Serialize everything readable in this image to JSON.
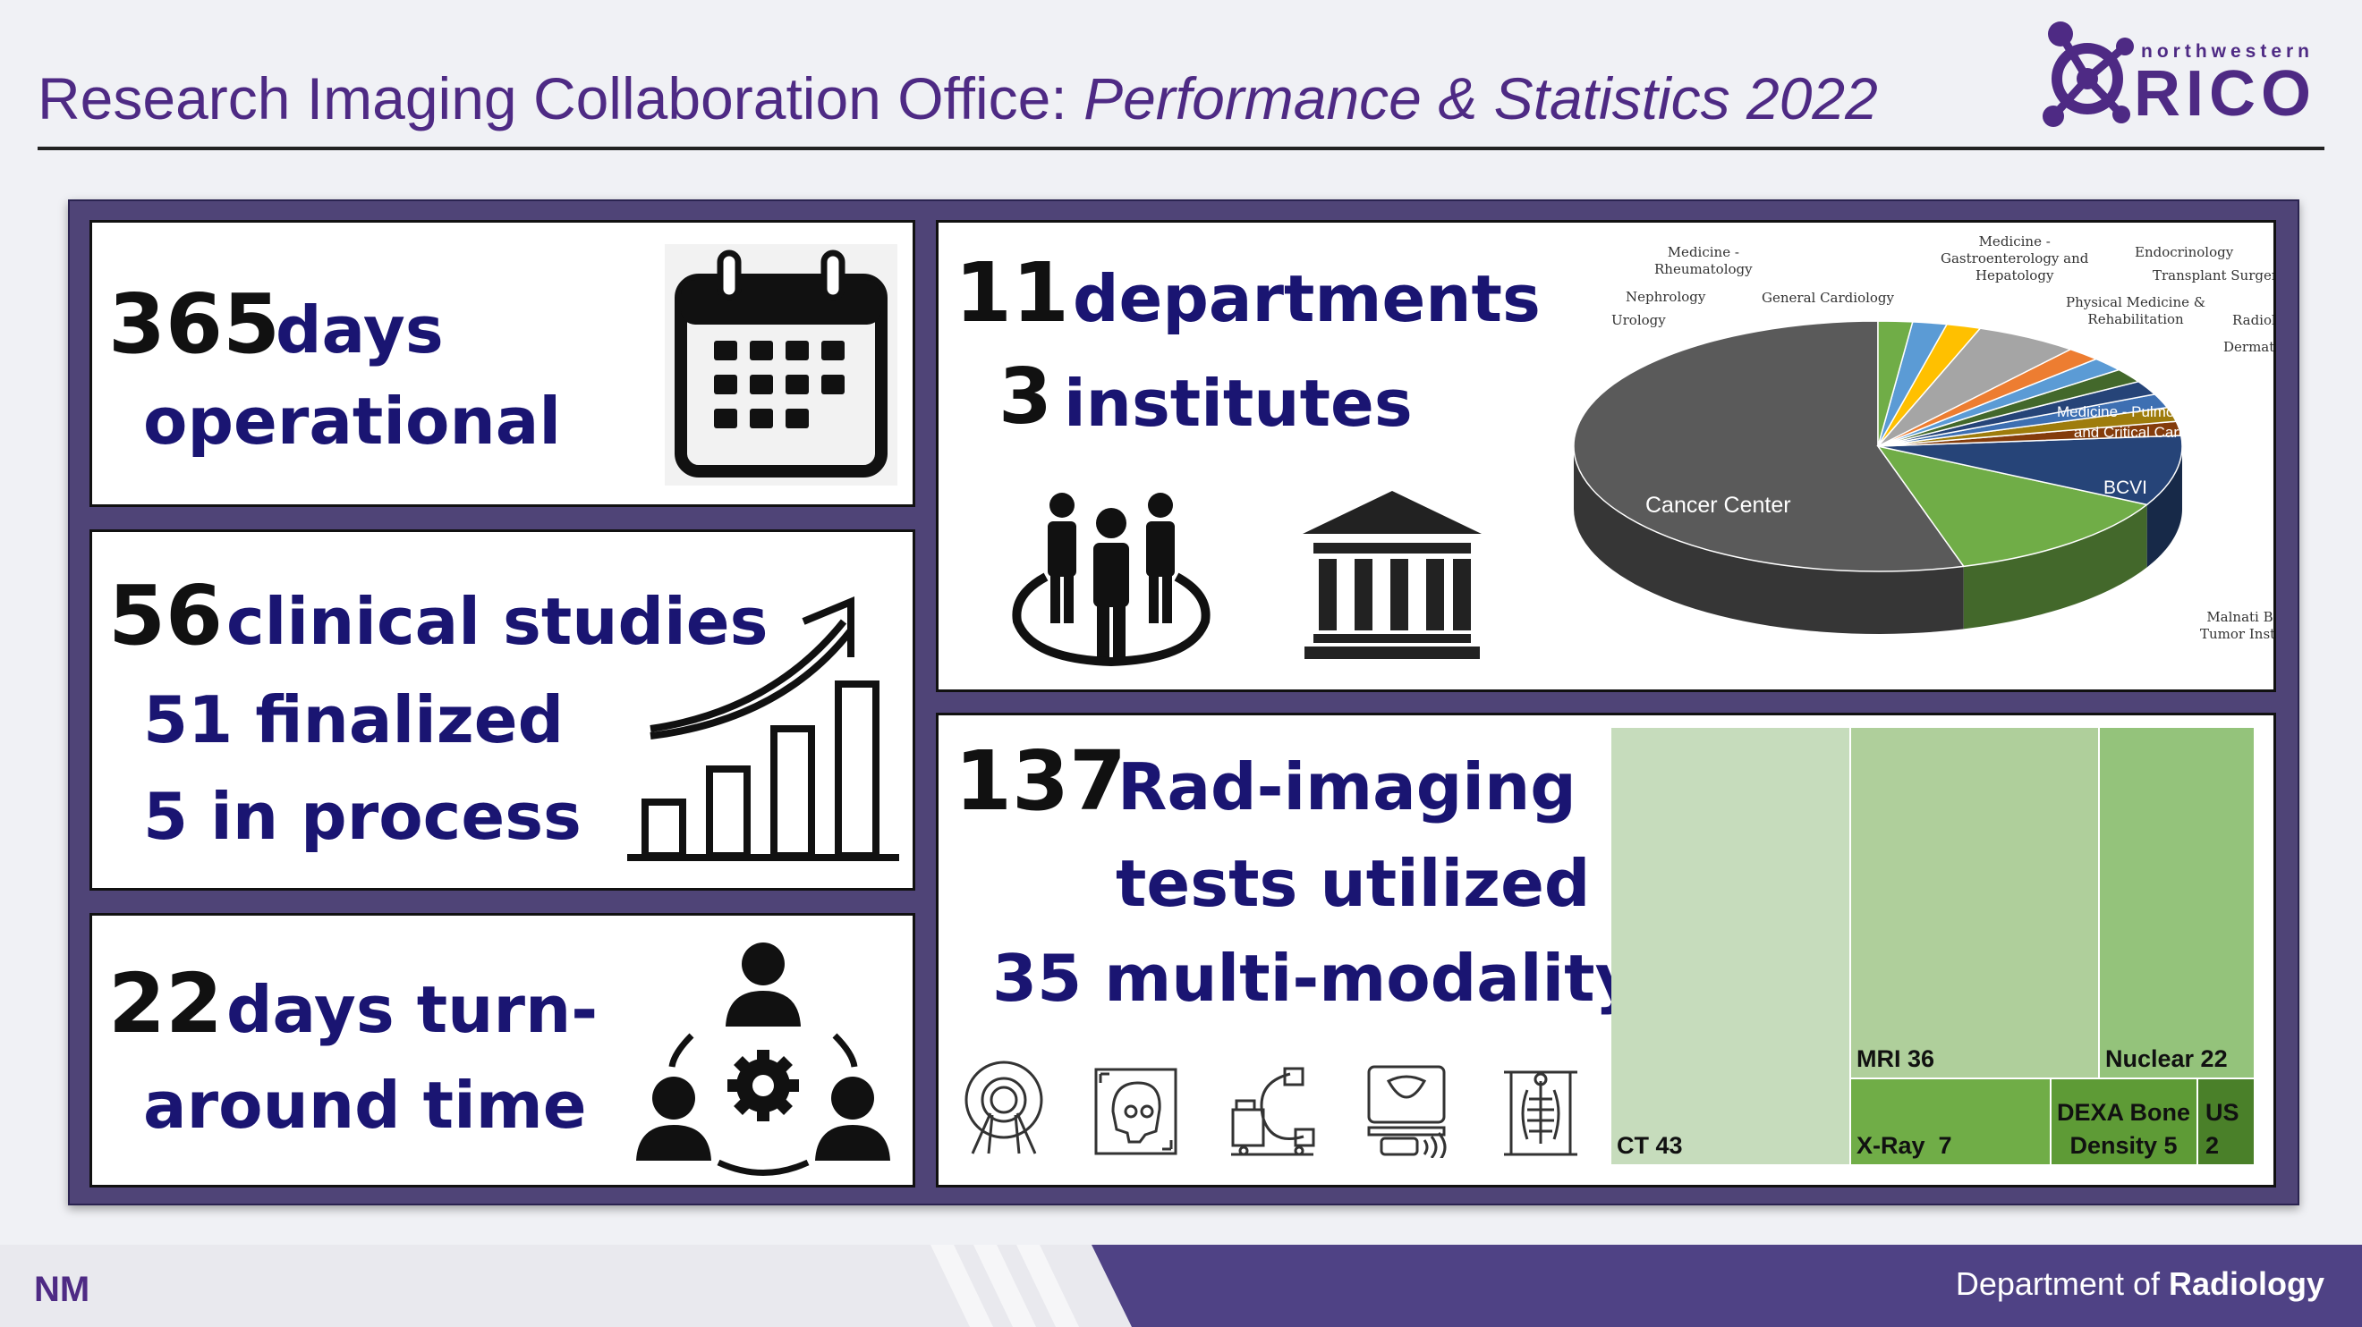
{
  "header": {
    "title_plain": "Research Imaging Collaboration Office: ",
    "title_italic": "Performance & Statistics 2022"
  },
  "logo": {
    "sub": "northwestern",
    "main": "RICO"
  },
  "cards": {
    "days": {
      "num": "365",
      "line1": "days",
      "line2": "operational",
      "icon": "calendar-icon"
    },
    "studies": {
      "num": "56",
      "line1": "clinical studies",
      "line2": "51 finalized",
      "line3": "5 in process",
      "icon": "growth-chart-icon"
    },
    "turnaround": {
      "num": "22",
      "line1": "days turn-",
      "line2": "around time",
      "icon": "team-gear-icon"
    },
    "departments": {
      "num1": "11",
      "label1": "departments",
      "num2": "3",
      "label2": "institutes",
      "icon1": "people-group-icon",
      "icon2": "institution-building-icon"
    },
    "imaging": {
      "num": "137",
      "line1": "Rad-imaging",
      "line2": "tests utilized",
      "line3": "35 multi-modality",
      "icons": [
        "mri-scanner-icon",
        "skull-xray-icon",
        "c-arm-icon",
        "ultrasound-icon",
        "chest-xray-icon"
      ]
    }
  },
  "pie_labels": {
    "rheumatology": "Medicine -\nRheumatology",
    "nephrology": "Nephrology",
    "urology": "Urology",
    "cardiology": "General Cardiology",
    "gastro": "Medicine -\nGastroenterology and\nHepatology",
    "endocrinology": "Endocrinology",
    "transplant": "Transplant Surgery",
    "physmed": "Physical Medicine &\nRehabilitation",
    "radiology": "Radiology",
    "dermatology": "Dermatology",
    "pulmonary": "Medicine - Pulmonary\nand Critical Care",
    "bcvi": "BCVI",
    "cancer": "Cancer Center",
    "malnati": "Malnati Brain\nTumor Institute"
  },
  "treemap": {
    "ct": "CT 43",
    "mri": "MRI 36",
    "nuclear": "Nuclear 22",
    "xray": "X-Ray  7",
    "dexa": "DEXA Bone\nDensity 5",
    "us": "US\n2"
  },
  "chart_data": [
    {
      "type": "pie",
      "categories": [
        "Cancer Center",
        "Medicine - Pulmonary and Critical Care",
        "BCVI",
        "Malnati Brain Tumor Institute",
        "Urology",
        "Nephrology",
        "Medicine - Rheumatology",
        "General Cardiology",
        "Medicine - Gastroenterology and Hepatology",
        "Endocrinology",
        "Transplant Surgery",
        "Physical Medicine & Rehabilitation",
        "Radiology",
        "Dermatology"
      ],
      "values": [
        30,
        7,
        5,
        1,
        1,
        1,
        1,
        1,
        1,
        1,
        3,
        1,
        1,
        1
      ],
      "colors": [
        "#5a5a5a",
        "#70ad47",
        "#264478",
        "#843c0c",
        "#9e7c0c",
        "#3d6fb2",
        "#264478",
        "#43682b",
        "#5b9bd5",
        "#ed7d31",
        "#a5a5a5",
        "#ffc000",
        "#5b9bd5",
        "#70ad47"
      ]
    },
    {
      "type": "treemap",
      "categories": [
        "CT",
        "MRI",
        "Nuclear",
        "X-Ray",
        "DEXA Bone Density",
        "US"
      ],
      "values": [
        43,
        36,
        22,
        7,
        5,
        2
      ]
    }
  ],
  "footer": {
    "dept_plain": "Department of ",
    "dept_bold": "Radiology",
    "mark": "NM"
  }
}
